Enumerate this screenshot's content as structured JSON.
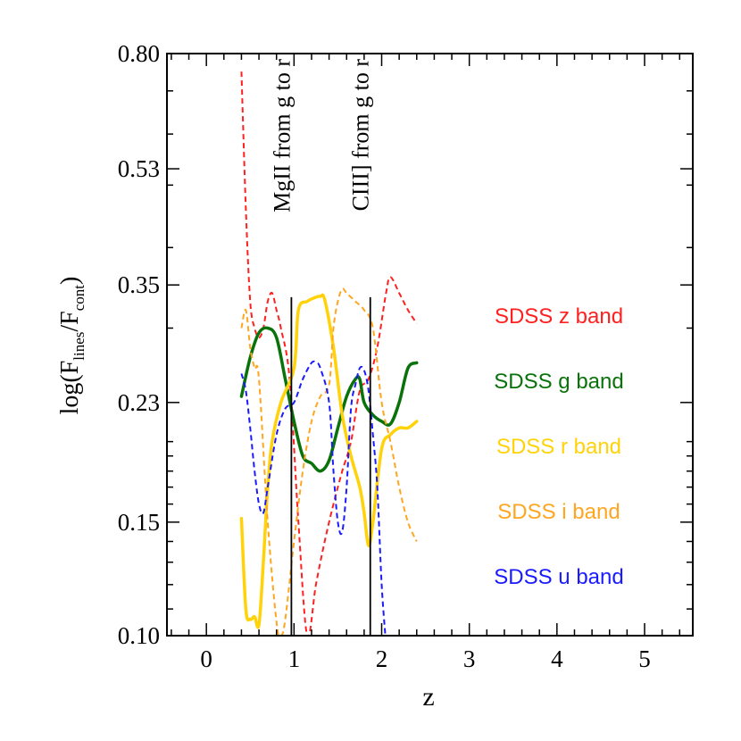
{
  "chart_data": {
    "type": "line",
    "xlabel": "z",
    "ylabel": "log(F_lines/F_cont)",
    "ylabel_parts": {
      "prefix": "log(F",
      "sub1": "lines",
      "mid": "/F",
      "sub2": "cont",
      "suffix": ")"
    },
    "xlim": [
      -0.45,
      5.55
    ],
    "ylim_log": [
      -1.0,
      -0.097
    ],
    "x_ticks": [
      0,
      1,
      2,
      3,
      4,
      5
    ],
    "x_tick_labels": [
      "0",
      "1",
      "2",
      "3",
      "4",
      "5"
    ],
    "y_ticks": [
      0.1,
      0.15,
      0.23,
      0.35,
      0.53,
      0.8
    ],
    "y_tick_labels": [
      "0.10",
      "0.15",
      "0.23",
      "0.35",
      "0.53",
      "0.80"
    ],
    "annotations": [
      {
        "x": 0.97,
        "label": "MgII from g to r"
      },
      {
        "x": 1.87,
        "label": "CIII] from g to r"
      }
    ],
    "series": [
      {
        "name": "SDSS z band",
        "color": "#ff2020",
        "dashed": true,
        "width": 2,
        "x": [
          0.4,
          0.45,
          0.5,
          0.55,
          0.6,
          0.65,
          0.7,
          0.75,
          0.8,
          0.85,
          0.95,
          1.05,
          1.15,
          1.25,
          1.35,
          1.45,
          1.55,
          1.65,
          1.75,
          1.85,
          1.95,
          2.05,
          2.1,
          2.2,
          2.3,
          2.4
        ],
        "y": [
          0.75,
          0.46,
          0.33,
          0.3,
          0.29,
          0.3,
          0.33,
          0.34,
          0.32,
          0.3,
          0.25,
          0.15,
          0.1,
          0.12,
          0.14,
          0.16,
          0.18,
          0.2,
          0.24,
          0.25,
          0.28,
          0.34,
          0.36,
          0.34,
          0.32,
          0.305
        ]
      },
      {
        "name": "SDSS g band",
        "color": "#0a720a",
        "dashed": false,
        "width": 3.5,
        "x": [
          0.4,
          0.5,
          0.6,
          0.7,
          0.8,
          0.9,
          1.0,
          1.1,
          1.2,
          1.3,
          1.4,
          1.5,
          1.6,
          1.7,
          1.75,
          1.8,
          1.9,
          2.0,
          2.1,
          2.2,
          2.3,
          2.4
        ],
        "y": [
          0.235,
          0.27,
          0.295,
          0.3,
          0.29,
          0.25,
          0.215,
          0.19,
          0.185,
          0.18,
          0.187,
          0.21,
          0.235,
          0.25,
          0.25,
          0.23,
          0.22,
          0.215,
          0.213,
          0.23,
          0.26,
          0.265
        ]
      },
      {
        "name": "SDSS r band",
        "color": "#ffd20a",
        "dashed": false,
        "width": 3.5,
        "x": [
          0.4,
          0.45,
          0.5,
          0.55,
          0.6,
          0.65,
          0.7,
          0.75,
          0.85,
          1.0,
          1.05,
          1.15,
          1.25,
          1.3,
          1.35,
          1.45,
          1.55,
          1.65,
          1.75,
          1.8,
          1.85,
          1.9,
          2.0,
          2.1,
          2.2,
          2.3,
          2.4
        ],
        "y": [
          0.152,
          0.11,
          0.106,
          0.107,
          0.104,
          0.13,
          0.17,
          0.2,
          0.23,
          0.26,
          0.32,
          0.33,
          0.335,
          0.336,
          0.332,
          0.28,
          0.22,
          0.19,
          0.17,
          0.155,
          0.138,
          0.15,
          0.195,
          0.205,
          0.21,
          0.21,
          0.215
        ]
      },
      {
        "name": "SDSS i band",
        "color": "#ffa620",
        "dashed": true,
        "width": 2,
        "x": [
          0.4,
          0.45,
          0.5,
          0.55,
          0.6,
          0.7,
          0.8,
          0.85,
          0.9,
          1.0,
          1.1,
          1.2,
          1.3,
          1.4,
          1.45,
          1.5,
          1.55,
          1.6,
          1.7,
          1.8,
          1.9,
          2.0,
          2.1,
          2.2,
          2.3,
          2.4
        ],
        "y": [
          0.3,
          0.32,
          0.28,
          0.26,
          0.25,
          0.15,
          0.105,
          0.1,
          0.106,
          0.14,
          0.18,
          0.215,
          0.235,
          0.245,
          0.3,
          0.33,
          0.345,
          0.34,
          0.33,
          0.32,
          0.3,
          0.23,
          0.2,
          0.17,
          0.15,
          0.14
        ]
      },
      {
        "name": "SDSS u band",
        "color": "#1a1aff",
        "dashed": true,
        "width": 2,
        "x": [
          0.4,
          0.45,
          0.5,
          0.55,
          0.6,
          0.65,
          0.7,
          0.8,
          0.9,
          1.0,
          1.1,
          1.2,
          1.25,
          1.3,
          1.4,
          1.45,
          1.5,
          1.55,
          1.6,
          1.65,
          1.7,
          1.75,
          1.8,
          1.85,
          1.9,
          1.95,
          2.0,
          2.05
        ],
        "y": [
          0.255,
          0.24,
          0.21,
          0.18,
          0.16,
          0.155,
          0.17,
          0.205,
          0.225,
          0.23,
          0.25,
          0.265,
          0.265,
          0.26,
          0.23,
          0.18,
          0.15,
          0.145,
          0.17,
          0.225,
          0.245,
          0.26,
          0.258,
          0.24,
          0.205,
          0.17,
          0.12,
          0.097
        ]
      }
    ],
    "legend": [
      {
        "label": "SDSS z band",
        "color": "#ff2020"
      },
      {
        "label": "SDSS g band",
        "color": "#0a720a"
      },
      {
        "label": "SDSS r band",
        "color": "#ffd20a"
      },
      {
        "label": "SDSS i band",
        "color": "#ffa620"
      },
      {
        "label": "SDSS u band",
        "color": "#1a1aff"
      }
    ]
  }
}
